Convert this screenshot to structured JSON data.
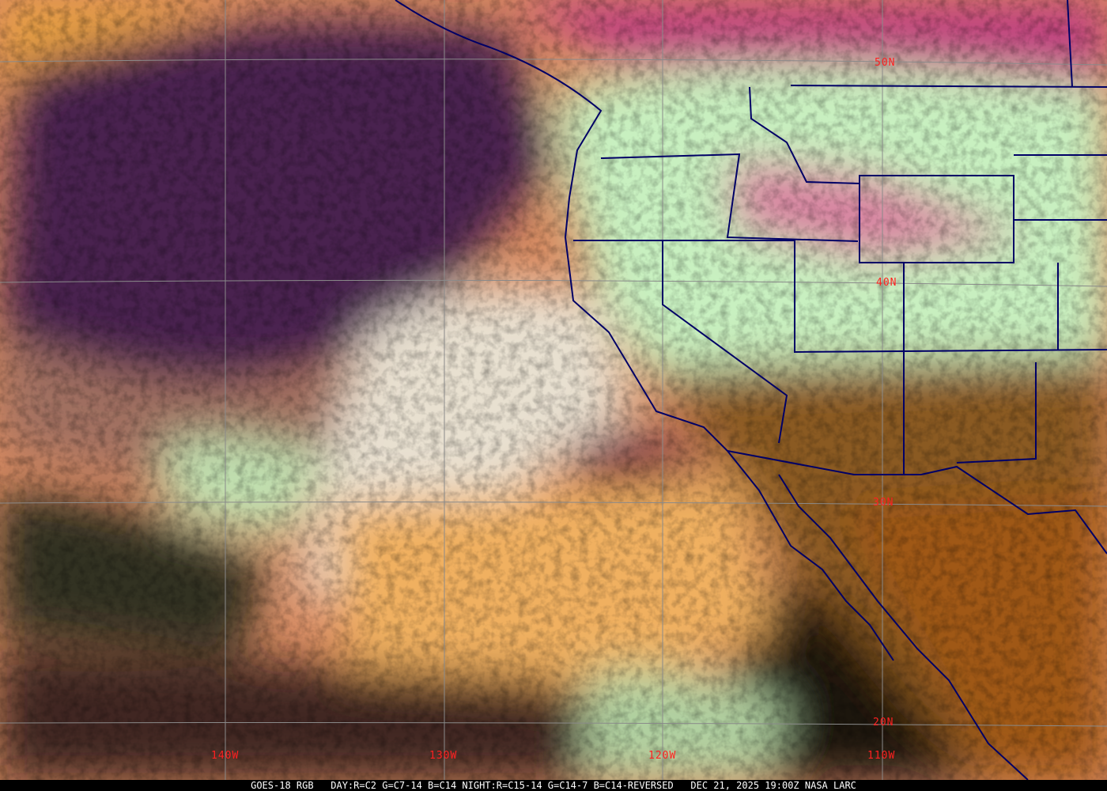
{
  "image": {
    "type": "satellite-rgb-composite",
    "colors": {
      "border": "#000066",
      "grid": "#8a8a8a",
      "label": "#ff2020"
    }
  },
  "grid_labels": {
    "lat": [
      "50N",
      "40N",
      "30N",
      "20N"
    ],
    "lon": [
      "140W",
      "130W",
      "120W",
      "110W"
    ]
  },
  "caption": "GOES-18 RGB   DAY:R=C2 G=C7-14 B=C14 NIGHT:R=C15-14 G=C14-7 B=C14-REVERSED   DEC 21, 2025 19:00Z NASA LARC"
}
